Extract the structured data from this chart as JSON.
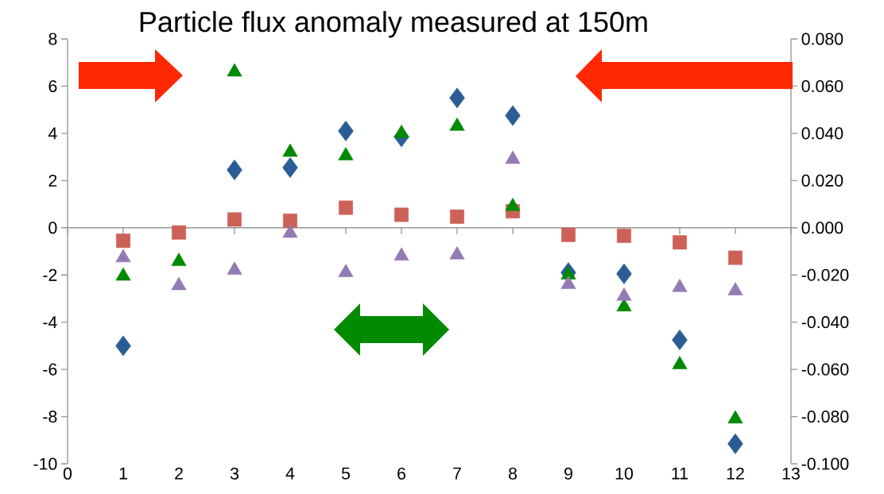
{
  "chart_data": {
    "type": "scatter",
    "title": "Particle flux anomaly measured at 150m",
    "x": [
      1,
      2,
      3,
      4,
      5,
      6,
      7,
      8,
      9,
      10,
      11,
      12
    ],
    "series": [
      {
        "color": "#2a5d94",
        "marker": "diamond",
        "values": [
          -5.0,
          null,
          2.45,
          2.55,
          4.1,
          3.85,
          5.5,
          4.75,
          -1.9,
          -1.95,
          -4.75,
          -9.15
        ]
      },
      {
        "color": "#cc6158",
        "marker": "square",
        "values": [
          -0.55,
          -0.2,
          0.35,
          0.3,
          0.85,
          0.55,
          0.47,
          0.7,
          -0.3,
          -0.34,
          -0.62,
          -1.27
        ]
      },
      {
        "color": "#008a00",
        "marker": "triangle",
        "values": [
          -2.05,
          -1.43,
          6.6,
          3.2,
          3.05,
          4.0,
          4.3,
          0.9,
          -2.0,
          -3.35,
          -5.8,
          -8.1
        ]
      },
      {
        "color": "#947bb3",
        "marker": "triangle",
        "values": [
          -1.27,
          -2.45,
          -1.8,
          -0.23,
          -1.9,
          -1.2,
          -1.15,
          2.9,
          -2.4,
          -2.9,
          -2.53,
          -2.67
        ]
      }
    ],
    "xlim": [
      0,
      13
    ],
    "xticks": [
      0,
      1,
      2,
      3,
      4,
      5,
      6,
      7,
      8,
      9,
      10,
      11,
      12,
      13
    ],
    "ylim": [
      -10,
      8
    ],
    "yticks": [
      -10,
      -8,
      -6,
      -4,
      -2,
      0,
      2,
      4,
      6,
      8
    ],
    "y2lim": [
      -0.1,
      0.08
    ],
    "y2ticks": [
      {
        "value": -0.1,
        "label": "-0.100"
      },
      {
        "value": -0.08,
        "label": "-0.080"
      },
      {
        "value": -0.06,
        "label": "-0.060"
      },
      {
        "value": -0.04,
        "label": "-0.040"
      },
      {
        "value": -0.02,
        "label": "-0.020"
      },
      {
        "value": 0,
        "label": "0.000"
      },
      {
        "value": 0.02,
        "label": "0.020"
      },
      {
        "value": 0.04,
        "label": "0.040"
      },
      {
        "value": 0.06,
        "label": "0.060"
      },
      {
        "value": 0.08,
        "label": "0.080"
      }
    ]
  }
}
